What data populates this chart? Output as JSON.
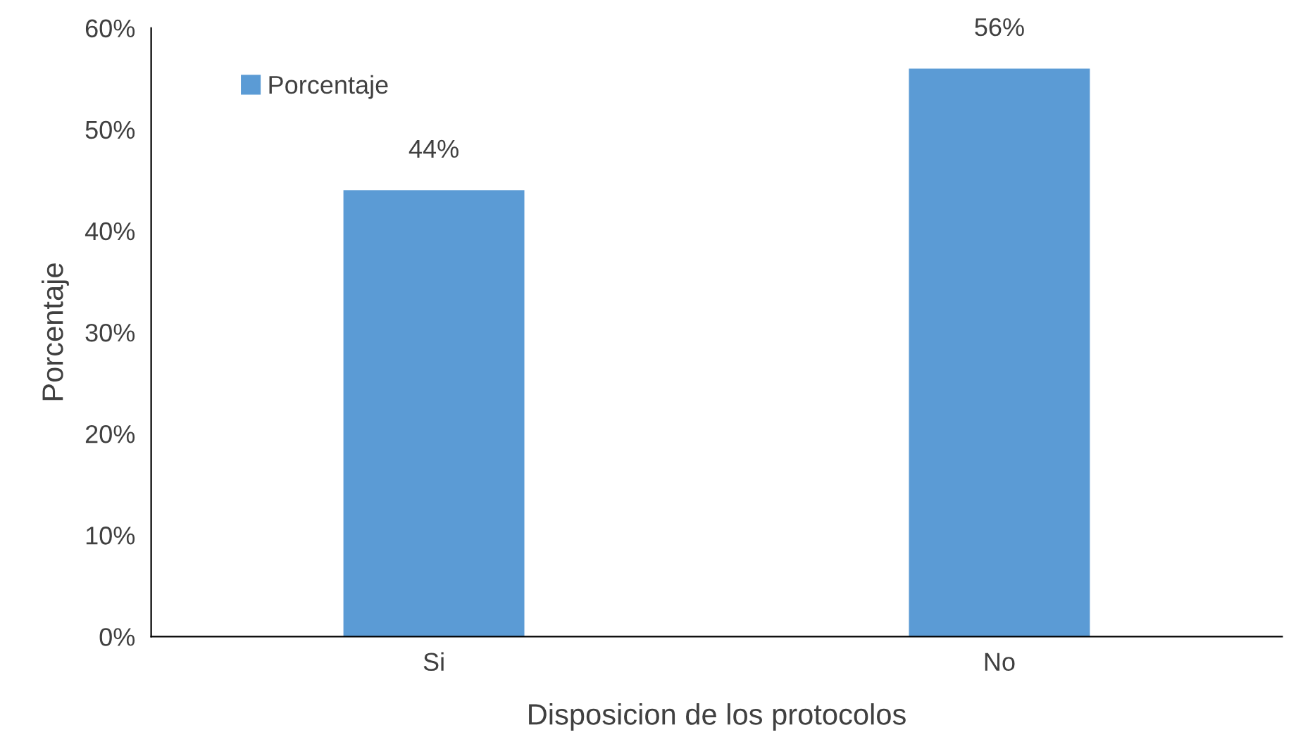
{
  "chart_data": {
    "type": "bar",
    "xlabel": "Disposicion de los protocolos",
    "ylabel": "Porcentaje",
    "categories": [
      "Si",
      "No"
    ],
    "series": [
      {
        "name": "Porcentaje",
        "color": "#5b9bd5",
        "values": [
          44,
          56
        ],
        "value_labels": [
          "44%",
          "56%"
        ]
      }
    ],
    "ylim": [
      0,
      60
    ],
    "yticks": [
      {
        "value": 0,
        "label": "0%"
      },
      {
        "value": 10,
        "label": "10%"
      },
      {
        "value": 20,
        "label": "20%"
      },
      {
        "value": 30,
        "label": "30%"
      },
      {
        "value": 40,
        "label": "40%"
      },
      {
        "value": 50,
        "label": "50%"
      },
      {
        "value": 60,
        "label": "60%"
      }
    ],
    "grid": false,
    "legend": "top left"
  }
}
